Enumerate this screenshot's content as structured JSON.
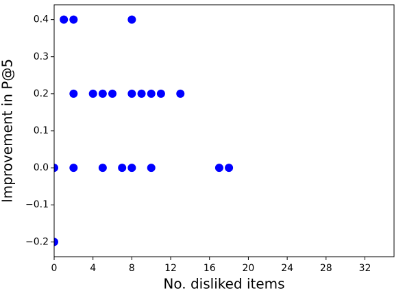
{
  "chart_data": {
    "type": "scatter",
    "x_label": "No. disliked items",
    "y_label": "Improvement in P@5",
    "color": "#0000ff",
    "x": [
      0,
      0,
      1,
      2,
      8,
      2,
      4,
      5,
      6,
      8,
      9,
      10,
      11,
      13,
      2,
      5,
      7,
      8,
      10,
      17,
      18
    ],
    "y": [
      0,
      -0.2,
      0.4,
      0.4,
      0.4,
      0.2,
      0.2,
      0.2,
      0.2,
      0.2,
      0.2,
      0.2,
      0.2,
      0.2,
      0,
      0,
      0,
      0,
      0,
      0,
      0
    ],
    "xlim": [
      0,
      35
    ],
    "ylim": [
      -0.24,
      0.44
    ],
    "xticks": [
      0,
      4,
      8,
      12,
      16,
      20,
      24,
      28,
      32
    ],
    "yticks": [
      {
        "value": -0.2,
        "label": "−0.2"
      },
      {
        "value": -0.1,
        "label": "−0.1"
      },
      {
        "value": 0,
        "label": "0.0"
      },
      {
        "value": 0.1,
        "label": "0.1"
      },
      {
        "value": 0.2,
        "label": "0.2"
      },
      {
        "value": 0.3,
        "label": "0.3"
      },
      {
        "value": 0.4,
        "label": "0.4"
      }
    ]
  }
}
